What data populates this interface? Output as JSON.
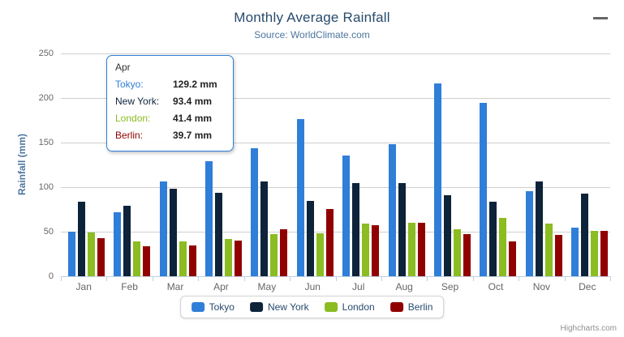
{
  "title": "Monthly Average Rainfall",
  "subtitle": "Source: WorldClimate.com",
  "credits": "Highcharts.com",
  "icons": {
    "menu": "hamburger-menu"
  },
  "colors": {
    "title": "#274b6d",
    "subtitle": "#4d759e",
    "axis_label": "#666666",
    "grid": "#cfcfcf",
    "axis_line": "#c0d0e0",
    "tooltip_border": "#2f7ed8"
  },
  "chart_data": {
    "type": "bar",
    "title": "Monthly Average Rainfall",
    "subtitle": "Source: WorldClimate.com",
    "categories": [
      "Jan",
      "Feb",
      "Mar",
      "Apr",
      "May",
      "Jun",
      "Jul",
      "Aug",
      "Sep",
      "Oct",
      "Nov",
      "Dec"
    ],
    "series": [
      {
        "name": "Tokyo",
        "color": "#2f7ed8",
        "values": [
          49.9,
          71.5,
          106.4,
          129.2,
          144.0,
          176.0,
          135.6,
          148.5,
          216.4,
          194.1,
          95.6,
          54.4
        ]
      },
      {
        "name": "New York",
        "color": "#0d233a",
        "values": [
          83.6,
          78.8,
          98.5,
          93.4,
          106.0,
          84.5,
          105.0,
          104.3,
          91.2,
          83.5,
          106.6,
          92.3
        ]
      },
      {
        "name": "London",
        "color": "#8bbc21",
        "values": [
          48.9,
          38.8,
          39.3,
          41.4,
          47.0,
          48.3,
          59.0,
          59.6,
          52.4,
          65.2,
          59.3,
          51.2
        ]
      },
      {
        "name": "Berlin",
        "color": "#910000",
        "values": [
          42.4,
          33.2,
          34.5,
          39.7,
          52.6,
          75.5,
          57.4,
          60.4,
          47.6,
          39.1,
          46.8,
          51.1
        ]
      }
    ],
    "xlabel": "",
    "ylabel": "Rainfall (mm)",
    "ylim": [
      0,
      250
    ],
    "yticks": [
      0,
      50,
      100,
      150,
      200,
      250
    ],
    "grid": true,
    "legend_position": "bottom"
  },
  "tooltip": {
    "header": "Apr",
    "rows": [
      {
        "label": "Tokyo:",
        "value": "129.2 mm",
        "color": "#2f7ed8"
      },
      {
        "label": "New York:",
        "value": "93.4 mm",
        "color": "#0d233a"
      },
      {
        "label": "London:",
        "value": "41.4 mm",
        "color": "#8bbc21"
      },
      {
        "label": "Berlin:",
        "value": "39.7 mm",
        "color": "#910000"
      }
    ]
  }
}
